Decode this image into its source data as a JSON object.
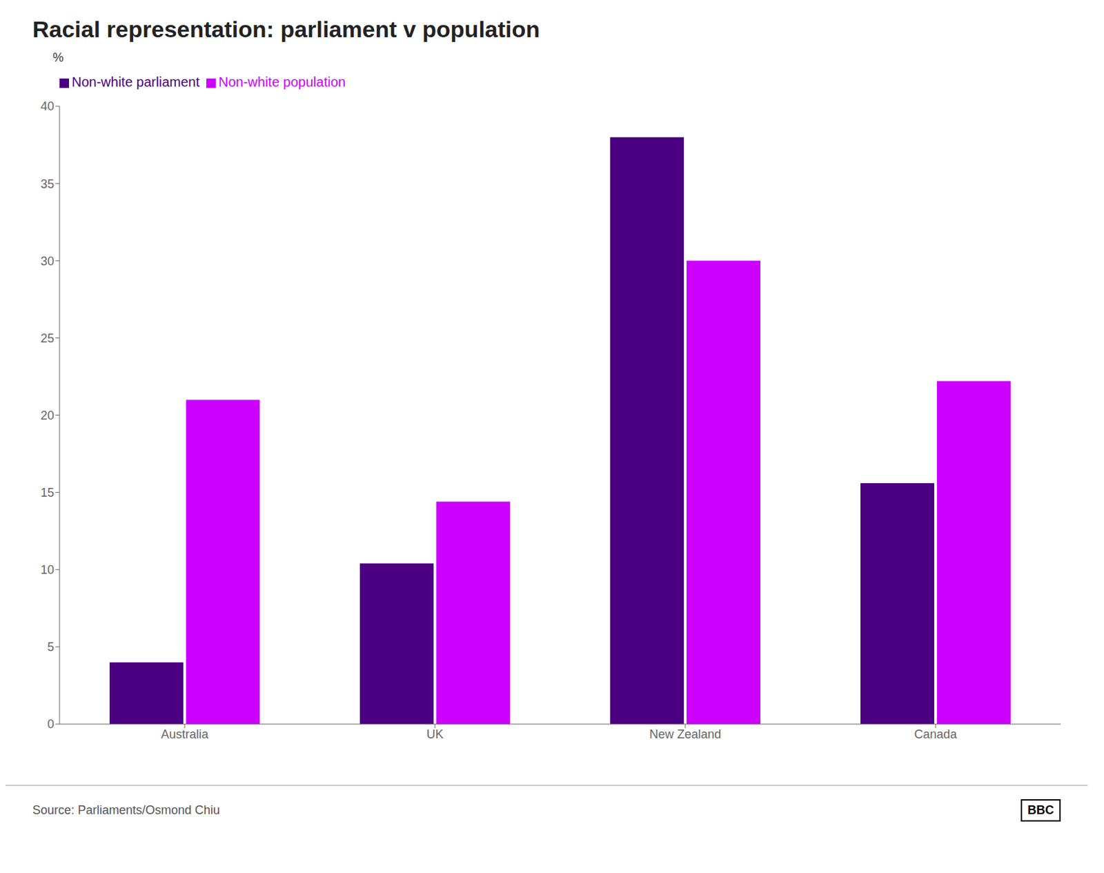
{
  "chart_data": {
    "type": "bar",
    "title": "Racial representation: parliament v population",
    "ylabel": "%",
    "categories": [
      "Australia",
      "UK",
      "New Zealand",
      "Canada"
    ],
    "series": [
      {
        "name": "Non-white parliament",
        "color": "#4B0082",
        "values": [
          4.0,
          10.4,
          38.0,
          15.6
        ]
      },
      {
        "name": "Non-white population",
        "color": "#CC00FF",
        "values": [
          21.0,
          14.4,
          30.0,
          22.2
        ]
      }
    ],
    "ylim": [
      0,
      40
    ],
    "yticks": [
      0,
      5,
      10,
      15,
      20,
      25,
      30,
      35,
      40
    ],
    "grid": false,
    "legend": "top",
    "annotations": [
      "Source: Parliaments/Osmond Chiu",
      "BBC"
    ]
  }
}
